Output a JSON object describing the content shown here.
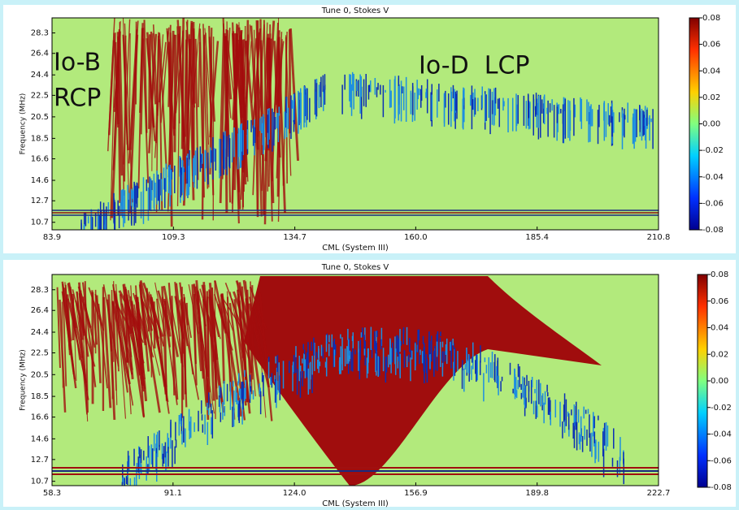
{
  "chart_data": [
    {
      "type": "spectrogram",
      "title": "Tune 0, Stokes V",
      "xlabel": "CML (System III)",
      "ylabel": "Frequency (MHz)",
      "xlim": [
        83.9,
        210.8
      ],
      "xticks": [
        83.9,
        109.3,
        134.7,
        {
          "value": 160,
          "label": "160.0"
        },
        185.4,
        210.8
      ],
      "ylim": [
        10.0,
        29.7
      ],
      "yticks": [
        10.7,
        12.7,
        14.6,
        16.6,
        18.5,
        20.5,
        22.5,
        24.4,
        26.4,
        28.3
      ],
      "clim": [
        -0.08,
        0.08
      ],
      "cticks": [
        0.08,
        0.06,
        0.04,
        0.02,
        {
          "value": 0,
          "label": "0.00"
        },
        -0.02,
        -0.04,
        -0.06,
        -0.08
      ],
      "annotations": [
        {
          "text": "Io-B",
          "color": "#b5261c"
        },
        {
          "text": "RCP",
          "color": "#b5261c"
        },
        {
          "text": "Io-D  LCP",
          "color": "#1f4fc4"
        }
      ]
    },
    {
      "type": "spectrogram",
      "title": "Tune 0, Stokes V",
      "xlabel": "CML (System III)",
      "ylabel": "Frequency (MHz)",
      "xlim": [
        58.3,
        222.7
      ],
      "xticks": [
        58.3,
        91.1,
        {
          "value": 124,
          "label": "124.0"
        },
        156.9,
        189.8,
        222.7
      ],
      "ylim": [
        10.3,
        29.7
      ],
      "yticks": [
        10.7,
        12.7,
        14.6,
        16.6,
        18.5,
        20.5,
        22.5,
        24.4,
        26.4,
        28.3
      ],
      "clim": [
        -0.08,
        0.08
      ],
      "cticks": [
        0.08,
        0.06,
        0.04,
        0.02,
        {
          "value": 0,
          "label": "0.00"
        },
        -0.02,
        -0.04,
        -0.06,
        -0.08
      ]
    }
  ]
}
